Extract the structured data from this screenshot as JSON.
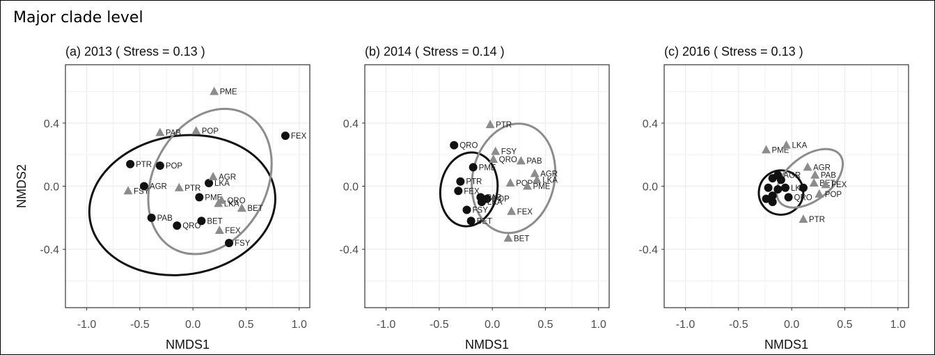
{
  "title": "Major clade level",
  "colors": {
    "clade_a": "#111111",
    "clade_b": "#8c8c8c",
    "grid": "#ebebeb",
    "axis_text": "#4d4d4d"
  },
  "chart_data": [
    {
      "type": "scatter",
      "title": "(a) 2013 ( Stress = 0.13 )",
      "xlabel": "NMDS1",
      "ylabel": "NMDS2",
      "xlim": [
        -1.2,
        1.1
      ],
      "ylim": [
        -0.77,
        0.77
      ],
      "xticks": [
        -1.0,
        -0.5,
        0.0,
        0.5,
        1.0
      ],
      "xtick_labels": [
        "-1.0",
        "-0.5",
        "0.0",
        "0.5",
        "1.0"
      ],
      "yticks": [
        -0.4,
        0.0,
        0.4
      ],
      "ytick_labels": [
        "-0.4",
        "0.0",
        "0.4"
      ],
      "series": [
        {
          "name": "circle",
          "marker": "circle",
          "color": "#111111",
          "points": [
            {
              "label": "FEX",
              "x": 0.87,
              "y": 0.32
            },
            {
              "label": "PTR",
              "x": -0.59,
              "y": 0.14
            },
            {
              "label": "POP",
              "x": -0.31,
              "y": 0.13
            },
            {
              "label": "AGR",
              "x": -0.46,
              "y": 0.0
            },
            {
              "label": "LKA",
              "x": 0.15,
              "y": 0.02
            },
            {
              "label": "PME",
              "x": 0.06,
              "y": -0.07
            },
            {
              "label": "PAB",
              "x": -0.39,
              "y": -0.2
            },
            {
              "label": "QRO",
              "x": -0.15,
              "y": -0.25
            },
            {
              "label": "BET",
              "x": 0.08,
              "y": -0.22
            },
            {
              "label": "FSY",
              "x": 0.34,
              "y": -0.36
            }
          ]
        },
        {
          "name": "triangle",
          "marker": "triangle",
          "color": "#8c8c8c",
          "points": [
            {
              "label": "PME",
              "x": 0.2,
              "y": 0.6
            },
            {
              "label": "PAB",
              "x": -0.31,
              "y": 0.34
            },
            {
              "label": "POP",
              "x": 0.03,
              "y": 0.35
            },
            {
              "label": "AGR",
              "x": 0.19,
              "y": 0.06
            },
            {
              "label": "PTR",
              "x": -0.13,
              "y": -0.01
            },
            {
              "label": "FSY",
              "x": -0.61,
              "y": -0.03
            },
            {
              "label": "LKA",
              "x": 0.24,
              "y": -0.11
            },
            {
              "label": "QRO",
              "x": 0.27,
              "y": -0.09
            },
            {
              "label": "BET",
              "x": 0.46,
              "y": -0.14
            },
            {
              "label": "FEX",
              "x": 0.25,
              "y": -0.28
            }
          ]
        }
      ],
      "ellipses": [
        {
          "series": "circle",
          "cx": -0.1,
          "cy": -0.12,
          "rx": 0.88,
          "ry": 0.44,
          "rotation_deg": -9
        },
        {
          "series": "triangle",
          "cx": 0.16,
          "cy": 0.03,
          "rx": 0.72,
          "ry": 0.36,
          "rotation_deg": -62
        }
      ]
    },
    {
      "type": "scatter",
      "title": "(b) 2014 ( Stress = 0.14 )",
      "xlabel": "NMDS1",
      "ylabel": "",
      "xlim": [
        -1.2,
        1.1
      ],
      "ylim": [
        -0.77,
        0.77
      ],
      "xticks": [
        -1.0,
        -0.5,
        0.0,
        0.5,
        1.0
      ],
      "xtick_labels": [
        "-1.0",
        "-0.5",
        "0.0",
        "0.5",
        "1.0"
      ],
      "yticks": [
        -0.4,
        0.0,
        0.4
      ],
      "ytick_labels": [
        "-0.4",
        "0.0",
        "0.4"
      ],
      "series": [
        {
          "name": "circle",
          "marker": "circle",
          "color": "#111111",
          "points": [
            {
              "label": "QRO",
              "x": -0.36,
              "y": 0.26
            },
            {
              "label": "PME",
              "x": -0.18,
              "y": 0.12
            },
            {
              "label": "PTR",
              "x": -0.3,
              "y": 0.03
            },
            {
              "label": "FEX",
              "x": -0.32,
              "y": -0.03
            },
            {
              "label": "PAB",
              "x": -0.11,
              "y": -0.07
            },
            {
              "label": "POP",
              "x": -0.05,
              "y": -0.08
            },
            {
              "label": "LKA",
              "x": -0.1,
              "y": -0.1
            },
            {
              "label": "FSY",
              "x": -0.24,
              "y": -0.15
            },
            {
              "label": "BET",
              "x": -0.2,
              "y": -0.22
            }
          ]
        },
        {
          "name": "triangle",
          "marker": "triangle",
          "color": "#8c8c8c",
          "points": [
            {
              "label": "PTR",
              "x": -0.02,
              "y": 0.39
            },
            {
              "label": "FSY",
              "x": 0.03,
              "y": 0.22
            },
            {
              "label": "QRO",
              "x": 0.01,
              "y": 0.17
            },
            {
              "label": "PAB",
              "x": 0.27,
              "y": 0.16
            },
            {
              "label": "AGR",
              "x": 0.4,
              "y": 0.08
            },
            {
              "label": "LKA",
              "x": 0.42,
              "y": 0.04
            },
            {
              "label": "POP",
              "x": 0.17,
              "y": 0.02
            },
            {
              "label": "PME",
              "x": 0.33,
              "y": 0.0
            },
            {
              "label": "FEX",
              "x": 0.18,
              "y": -0.16
            },
            {
              "label": "BET",
              "x": 0.15,
              "y": -0.33
            }
          ]
        }
      ],
      "ellipses": [
        {
          "series": "circle",
          "cx": -0.22,
          "cy": -0.02,
          "rx": 0.35,
          "ry": 0.18,
          "rotation_deg": -80
        },
        {
          "series": "triangle",
          "cx": 0.2,
          "cy": 0.05,
          "rx": 0.52,
          "ry": 0.26,
          "rotation_deg": -78
        }
      ]
    },
    {
      "type": "scatter",
      "title": "(c) 2016 ( Stress = 0.13 )",
      "xlabel": "NMDS1",
      "ylabel": "",
      "xlim": [
        -1.2,
        1.1
      ],
      "ylim": [
        -0.77,
        0.77
      ],
      "xticks": [
        -1.0,
        -0.5,
        0.0,
        0.5,
        1.0
      ],
      "xtick_labels": [
        "-1.0",
        "-0.5",
        "0.0",
        "0.5",
        "1.0"
      ],
      "yticks": [
        -0.4,
        0.0,
        0.4
      ],
      "ytick_labels": [
        "-0.4",
        "0.0",
        "0.4"
      ],
      "series": [
        {
          "name": "circle",
          "marker": "circle",
          "color": "#111111",
          "points": [
            {
              "label": "",
              "x": -0.18,
              "y": 0.05
            },
            {
              "label": "AGR",
              "x": -0.13,
              "y": 0.07
            },
            {
              "label": "",
              "x": -0.1,
              "y": 0.04
            },
            {
              "label": "",
              "x": -0.22,
              "y": -0.01
            },
            {
              "label": "LKA",
              "x": -0.06,
              "y": -0.01
            },
            {
              "label": "",
              "x": -0.13,
              "y": -0.02
            },
            {
              "label": "",
              "x": 0.11,
              "y": -0.01
            },
            {
              "label": "",
              "x": -0.18,
              "y": -0.06
            },
            {
              "label": "QRO",
              "x": -0.03,
              "y": -0.07
            },
            {
              "label": "",
              "x": -0.24,
              "y": -0.08
            },
            {
              "label": "",
              "x": -0.18,
              "y": -0.1
            }
          ]
        },
        {
          "name": "triangle",
          "marker": "triangle",
          "color": "#8c8c8c",
          "points": [
            {
              "label": "PME",
              "x": -0.24,
              "y": 0.23
            },
            {
              "label": "LKA",
              "x": -0.05,
              "y": 0.26
            },
            {
              "label": "AGR",
              "x": 0.15,
              "y": 0.12
            },
            {
              "label": "PAB",
              "x": 0.22,
              "y": 0.07
            },
            {
              "label": "BET",
              "x": 0.21,
              "y": 0.02
            },
            {
              "label": "FEX",
              "x": 0.32,
              "y": 0.01
            },
            {
              "label": "POP",
              "x": 0.26,
              "y": -0.05
            },
            {
              "label": "PTR",
              "x": 0.11,
              "y": -0.21
            }
          ]
        }
      ],
      "ellipses": [
        {
          "series": "circle",
          "cx": -0.1,
          "cy": -0.04,
          "rx": 0.21,
          "ry": 0.14,
          "rotation_deg": -40
        },
        {
          "series": "triangle",
          "cx": 0.17,
          "cy": 0.05,
          "rx": 0.36,
          "ry": 0.14,
          "rotation_deg": -38
        }
      ]
    }
  ]
}
